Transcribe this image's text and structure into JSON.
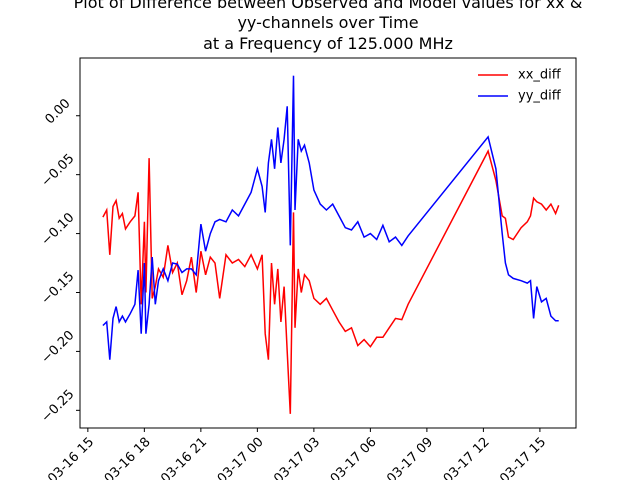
{
  "chart_data": {
    "type": "line",
    "title": [
      "Plot of Difference between Observed and Model values for xx &",
      "yy-channels over Time",
      "at a Frequency of 125.000 MHz"
    ],
    "x": [
      "03-16 15:48",
      "03-16 16:00",
      "03-16 16:10",
      "03-16 16:20",
      "03-16 16:30",
      "03-16 16:40",
      "03-16 16:50",
      "03-16 17:00",
      "03-16 17:15",
      "03-16 17:30",
      "03-16 17:40",
      "03-16 17:50",
      "03-16 18:00",
      "03-16 18:05",
      "03-16 18:15",
      "03-16 18:25",
      "03-16 18:35",
      "03-16 18:45",
      "03-16 19:00",
      "03-16 19:15",
      "03-16 19:30",
      "03-16 19:45",
      "03-16 20:00",
      "03-16 20:15",
      "03-16 20:30",
      "03-16 20:45",
      "03-16 21:00",
      "03-16 21:15",
      "03-16 21:30",
      "03-16 21:45",
      "03-16 22:00",
      "03-16 22:20",
      "03-16 22:40",
      "03-16 23:00",
      "03-16 23:20",
      "03-16 23:40",
      "03-17 00:00",
      "03-17 00:15",
      "03-17 00:25",
      "03-17 00:35",
      "03-17 00:45",
      "03-17 00:55",
      "03-17 01:05",
      "03-17 01:15",
      "03-17 01:25",
      "03-17 01:35",
      "03-17 01:45",
      "03-17 01:55",
      "03-17 02:00",
      "03-17 02:10",
      "03-17 02:20",
      "03-17 02:30",
      "03-17 02:45",
      "03-17 03:00",
      "03-17 03:20",
      "03-17 03:40",
      "03-17 04:00",
      "03-17 04:20",
      "03-17 04:40",
      "03-17 05:00",
      "03-17 05:20",
      "03-17 05:40",
      "03-17 06:00",
      "03-17 06:20",
      "03-17 06:40",
      "03-17 07:00",
      "03-17 07:20",
      "03-17 07:40",
      "03-17 08:00",
      "03-17 12:15",
      "03-17 12:40",
      "03-17 13:00",
      "03-17 13:10",
      "03-17 13:20",
      "03-17 13:35",
      "03-17 14:00",
      "03-17 14:20",
      "03-17 14:30",
      "03-17 14:40",
      "03-17 14:50",
      "03-17 15:05",
      "03-17 15:20",
      "03-17 15:35",
      "03-17 15:50",
      "03-17 16:00"
    ],
    "series": [
      {
        "name": "xx_diff",
        "color": "#ff0000",
        "values": [
          -0.086,
          -0.08,
          -0.118,
          -0.077,
          -0.072,
          -0.087,
          -0.083,
          -0.096,
          -0.09,
          -0.085,
          -0.065,
          -0.16,
          -0.09,
          -0.15,
          -0.036,
          -0.155,
          -0.145,
          -0.13,
          -0.137,
          -0.11,
          -0.133,
          -0.125,
          -0.152,
          -0.14,
          -0.12,
          -0.15,
          -0.115,
          -0.135,
          -0.12,
          -0.125,
          -0.155,
          -0.118,
          -0.125,
          -0.122,
          -0.128,
          -0.118,
          -0.13,
          -0.118,
          -0.185,
          -0.207,
          -0.125,
          -0.16,
          -0.13,
          -0.175,
          -0.145,
          -0.2,
          -0.253,
          -0.082,
          -0.18,
          -0.13,
          -0.15,
          -0.135,
          -0.14,
          -0.155,
          -0.16,
          -0.155,
          -0.165,
          -0.175,
          -0.183,
          -0.18,
          -0.195,
          -0.19,
          -0.196,
          -0.188,
          -0.188,
          -0.18,
          -0.172,
          -0.173,
          -0.16,
          -0.03,
          -0.055,
          -0.085,
          -0.087,
          -0.103,
          -0.105,
          -0.095,
          -0.09,
          -0.085,
          -0.07,
          -0.073,
          -0.075,
          -0.08,
          -0.075,
          -0.083,
          -0.076
        ]
      },
      {
        "name": "yy_diff",
        "color": "#0000ff",
        "values": [
          -0.178,
          -0.175,
          -0.207,
          -0.172,
          -0.162,
          -0.175,
          -0.17,
          -0.175,
          -0.168,
          -0.16,
          -0.131,
          -0.185,
          -0.125,
          -0.185,
          -0.16,
          -0.12,
          -0.16,
          -0.14,
          -0.13,
          -0.14,
          -0.125,
          -0.126,
          -0.133,
          -0.13,
          -0.13,
          -0.135,
          -0.092,
          -0.115,
          -0.1,
          -0.09,
          -0.088,
          -0.09,
          -0.08,
          -0.085,
          -0.075,
          -0.065,
          -0.045,
          -0.06,
          -0.082,
          -0.04,
          -0.02,
          -0.045,
          -0.01,
          -0.04,
          -0.02,
          0.008,
          -0.11,
          0.034,
          -0.08,
          -0.02,
          -0.03,
          -0.025,
          -0.04,
          -0.063,
          -0.075,
          -0.08,
          -0.075,
          -0.085,
          -0.095,
          -0.097,
          -0.09,
          -0.103,
          -0.1,
          -0.105,
          -0.093,
          -0.107,
          -0.103,
          -0.11,
          -0.102,
          -0.018,
          -0.045,
          -0.1,
          -0.125,
          -0.135,
          -0.138,
          -0.14,
          -0.142,
          -0.14,
          -0.172,
          -0.145,
          -0.158,
          -0.155,
          -0.17,
          -0.174,
          -0.174
        ]
      }
    ],
    "xlim": [
      "03-16 14:35",
      "03-17 16:55"
    ],
    "xticks": [
      {
        "value": "03-16 15:00",
        "label": "03-16 15"
      },
      {
        "value": "03-16 18:00",
        "label": "03-16 18"
      },
      {
        "value": "03-16 21:00",
        "label": "03-16 21"
      },
      {
        "value": "03-17 00:00",
        "label": "03-17 00"
      },
      {
        "value": "03-17 03:00",
        "label": "03-17 03"
      },
      {
        "value": "03-17 06:00",
        "label": "03-17 06"
      },
      {
        "value": "03-17 09:00",
        "label": "03-17 09"
      },
      {
        "value": "03-17 12:00",
        "label": "03-17 12"
      },
      {
        "value": "03-17 15:00",
        "label": "03-17 15"
      }
    ],
    "ylim": [
      -0.265,
      0.049
    ],
    "yticks": [
      {
        "value": -0.25,
        "label": "−0.25"
      },
      {
        "value": -0.2,
        "label": "−0.20"
      },
      {
        "value": -0.15,
        "label": "−0.15"
      },
      {
        "value": -0.1,
        "label": "−0.10"
      },
      {
        "value": -0.05,
        "label": "−0.05"
      },
      {
        "value": 0,
        "label": "0.00"
      }
    ],
    "legend": "upper right"
  }
}
